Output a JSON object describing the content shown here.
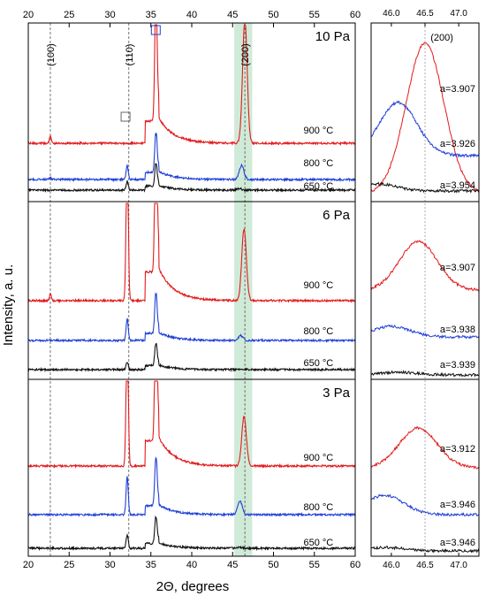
{
  "chart_data": {
    "type": "line",
    "xlabel": "2Θ, degrees",
    "ylabel": "Intensity, a. u.",
    "main_xlim": [
      20,
      60
    ],
    "main_xticks": [
      20,
      25,
      30,
      35,
      40,
      45,
      50,
      55,
      60
    ],
    "zoom_xlim": [
      45.7,
      47.3
    ],
    "zoom_xticks": [
      "46.0",
      "46.5",
      "47.0"
    ],
    "grid": false,
    "reference_lines": [
      {
        "x": 22.7,
        "label": "(100)"
      },
      {
        "x": 32.3,
        "label": "(110)"
      },
      {
        "x": 46.5,
        "label": "(200)"
      }
    ],
    "highlight_band": {
      "from": 45.2,
      "to": 47.4,
      "color": "#c8e6d1"
    },
    "zoom_reference_x": 46.5,
    "zoom_peak_label": "(200)",
    "markers": [
      {
        "x": 31.9,
        "panel": "10 Pa",
        "symbol": "open-square"
      },
      {
        "x": 35.6,
        "panel": "10 Pa",
        "symbol": "open-square"
      }
    ],
    "series_colors": {
      "900 °C": "#e31a1c",
      "800 °C": "#1f3fd6",
      "650 °C": "#111111"
    },
    "panels": [
      {
        "pressure": "10 Pa",
        "series": [
          {
            "name": "900 °C",
            "peaks": [
              [
                22.7,
                0.06
              ],
              [
                35.6,
                1.0
              ],
              [
                46.5,
                1.0
              ]
            ],
            "lattice": "a=3.907"
          },
          {
            "name": "800 °C",
            "peaks": [
              [
                22.7,
                0.04
              ],
              [
                32.1,
                0.35
              ],
              [
                35.6,
                1.0
              ],
              [
                46.1,
                0.35
              ]
            ],
            "lattice": "a=3.926"
          },
          {
            "name": "650 °C",
            "peaks": [
              [
                32.1,
                0.4
              ],
              [
                35.6,
                1.0
              ],
              [
                45.8,
                0.07
              ]
            ],
            "lattice": "a=3.954"
          }
        ]
      },
      {
        "pressure": "6 Pa",
        "series": [
          {
            "name": "900 °C",
            "peaks": [
              [
                22.7,
                0.04
              ],
              [
                32.1,
                1.0
              ],
              [
                35.6,
                1.0
              ],
              [
                46.4,
                0.45
              ]
            ],
            "lattice": "a=3.907"
          },
          {
            "name": "800 °C",
            "peaks": [
              [
                32.1,
                0.55
              ],
              [
                35.6,
                1.0
              ],
              [
                46.0,
                0.12
              ]
            ],
            "lattice": "a=3.938"
          },
          {
            "name": "650 °C",
            "peaks": [
              [
                32.1,
                0.35
              ],
              [
                35.6,
                1.0
              ],
              [
                46.1,
                0.03
              ]
            ],
            "lattice": "a=3.939"
          }
        ]
      },
      {
        "pressure": "3 Pa",
        "series": [
          {
            "name": "900 °C",
            "peaks": [
              [
                32.1,
                1.0
              ],
              [
                35.6,
                1.0
              ],
              [
                46.4,
                0.35
              ]
            ],
            "lattice": "a=3.912"
          },
          {
            "name": "800 °C",
            "peaks": [
              [
                32.1,
                0.8
              ],
              [
                35.6,
                1.0
              ],
              [
                45.9,
                0.28
              ]
            ],
            "lattice": "a=3.946"
          },
          {
            "name": "650 °C",
            "peaks": [
              [
                32.1,
                0.5
              ],
              [
                35.6,
                1.0
              ],
              [
                45.9,
                0.04
              ]
            ],
            "lattice": "a=3.946"
          }
        ]
      }
    ]
  }
}
